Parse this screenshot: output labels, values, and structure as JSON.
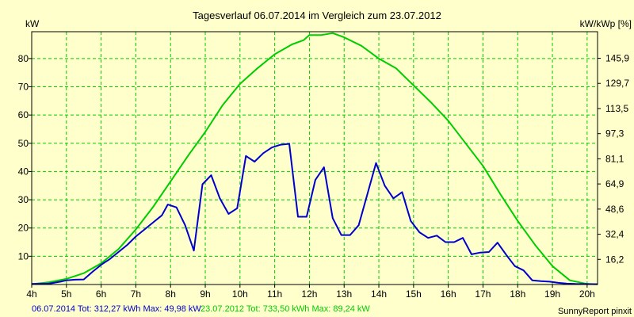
{
  "chart_data": {
    "type": "line",
    "title": "Tagesverlauf 06.07.2014 im Vergleich zum 23.07.2012",
    "ylabel_left": "kW",
    "ylabel_right": "kW/kWp [%]",
    "xlim": [
      4,
      20.3
    ],
    "ylim": [
      0,
      89.5
    ],
    "x_ticks": [
      4,
      5,
      6,
      7,
      8,
      9,
      10,
      11,
      12,
      13,
      14,
      15,
      16,
      17,
      18,
      19,
      20
    ],
    "x_tick_labels": [
      "4h",
      "5h",
      "6h",
      "7h",
      "8h",
      "9h",
      "10h",
      "11h",
      "12h",
      "13h",
      "14h",
      "15h",
      "16h",
      "17h",
      "18h",
      "19h",
      "20h"
    ],
    "y_ticks_left": [
      10,
      20,
      30,
      40,
      50,
      60,
      70,
      80
    ],
    "y_tick_labels_left": [
      "10",
      "20",
      "30",
      "40",
      "50",
      "60",
      "70",
      "80"
    ],
    "y_ticks_right_kw": [
      8.9,
      17.8,
      26.7,
      35.6,
      44.5,
      53.4,
      62.3,
      71.2,
      80.1
    ],
    "y_tick_labels_right": [
      "16,2",
      "32,4",
      "48,6",
      "64,9",
      "81,1",
      "97,3",
      "113,5",
      "129,7",
      "145,9"
    ],
    "grid": true,
    "colors": {
      "background": "#ffffcc",
      "plot": "#ffffcc",
      "grid": "#00cc00",
      "axis": "#000000"
    },
    "series": [
      {
        "name": "06.07.2014",
        "color": "#0000cc",
        "x": [
          4.0,
          4.5,
          4.83,
          5.0,
          5.25,
          5.5,
          5.75,
          6.0,
          6.25,
          6.5,
          6.75,
          7.0,
          7.25,
          7.5,
          7.75,
          7.92,
          8.17,
          8.42,
          8.67,
          8.92,
          9.17,
          9.42,
          9.67,
          9.92,
          10.17,
          10.42,
          10.67,
          10.92,
          11.17,
          11.42,
          11.67,
          11.92,
          12.17,
          12.42,
          12.67,
          12.92,
          13.17,
          13.42,
          13.67,
          13.92,
          14.17,
          14.42,
          14.67,
          14.92,
          15.17,
          15.42,
          15.67,
          15.92,
          16.17,
          16.42,
          16.67,
          16.92,
          17.17,
          17.42,
          17.67,
          17.92,
          18.17,
          18.42,
          18.67,
          18.92,
          19.17,
          19.42,
          19.67,
          20.3
        ],
        "y": [
          0.2,
          0.3,
          1.0,
          1.5,
          1.7,
          1.8,
          4.5,
          7.0,
          9.0,
          11.5,
          14.0,
          17.0,
          19.5,
          22.0,
          24.5,
          28.3,
          27.3,
          21.0,
          12.0,
          35.5,
          38.7,
          30.5,
          25.0,
          27.0,
          45.5,
          43.5,
          46.5,
          48.5,
          49.5,
          49.8,
          24.0,
          24.0,
          37.0,
          41.5,
          23.5,
          17.5,
          17.5,
          21.0,
          32.0,
          43.0,
          35.0,
          30.5,
          32.7,
          22.5,
          18.5,
          16.5,
          17.3,
          15.0,
          15.0,
          16.5,
          10.7,
          11.3,
          11.5,
          14.8,
          10.5,
          6.5,
          5.0,
          1.5,
          1.2,
          1.0,
          0.6,
          0.3,
          0.2,
          0.1
        ]
      },
      {
        "name": "23.07.2012",
        "color": "#00cc00",
        "x": [
          4.0,
          4.5,
          5.0,
          5.5,
          6.0,
          6.5,
          7.0,
          7.5,
          8.0,
          8.5,
          9.0,
          9.5,
          10.0,
          10.5,
          11.0,
          11.5,
          11.83,
          12.0,
          12.33,
          12.67,
          13.0,
          13.5,
          14.0,
          14.5,
          15.0,
          15.5,
          16.0,
          16.5,
          17.0,
          17.5,
          18.0,
          18.5,
          19.0,
          19.5,
          20.0,
          20.3
        ],
        "y": [
          0.1,
          0.8,
          2.0,
          4.0,
          7.5,
          12.5,
          19.5,
          27.5,
          36.5,
          45.5,
          54.0,
          63.5,
          71.0,
          76.5,
          81.5,
          85.0,
          86.5,
          88.3,
          88.3,
          89.0,
          87.5,
          84.5,
          80.0,
          76.5,
          70.5,
          64.5,
          58.0,
          50.0,
          42.0,
          32.0,
          22.5,
          14.0,
          6.5,
          1.5,
          0.2,
          0.1
        ]
      }
    ]
  },
  "footer": {
    "series_a_text": "06.07.2014 Tot: 312,27 kWh Max: 49,98 kW",
    "series_b_text": "23.07.2012 Tot: 733,50 kWh Max: 89,24 kW",
    "credit": "SunnyReport pinxit"
  }
}
